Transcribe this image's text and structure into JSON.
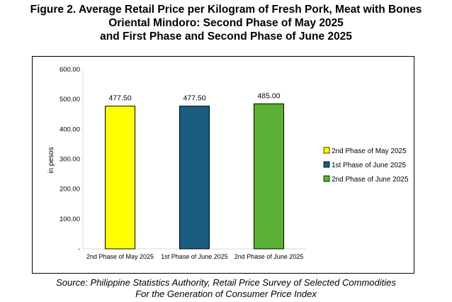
{
  "title_lines": [
    "Figure 2. Average Retail Price per Kilogram of Fresh Pork, Meat with Bones",
    "Oriental Mindoro: Second Phase of May 2025",
    "and First Phase and Second Phase of June 2025"
  ],
  "source_lines": [
    "Source: Philippine Statistics Authority, Retail Price Survey of Selected Commodities",
    "For the Generation of Consumer Price Index"
  ],
  "chart_data": {
    "type": "bar",
    "categories": [
      "2nd Phase of May 2025",
      "1st Phase of June 2025",
      "2nd Phase of June 2025"
    ],
    "values": [
      477.5,
      477.5,
      485.0
    ],
    "value_labels": [
      "477.50",
      "477.50",
      "485.00"
    ],
    "colors": [
      "#FFFF00",
      "#1A5C7E",
      "#5BAF32"
    ],
    "ylabel": "in pesos",
    "ylim": [
      0,
      600
    ],
    "yticks": [
      0,
      100,
      200,
      300,
      400,
      500,
      600
    ],
    "ytick_labels": [
      "-",
      "100.00",
      "200.00",
      "300.00",
      "400.00",
      "500.00",
      "600.00"
    ],
    "grid": false,
    "legend": {
      "placement": "right",
      "entries": [
        "2nd Phase of May 2025",
        "1st Phase of June 2025",
        "2nd Phase of June 2025"
      ]
    }
  }
}
